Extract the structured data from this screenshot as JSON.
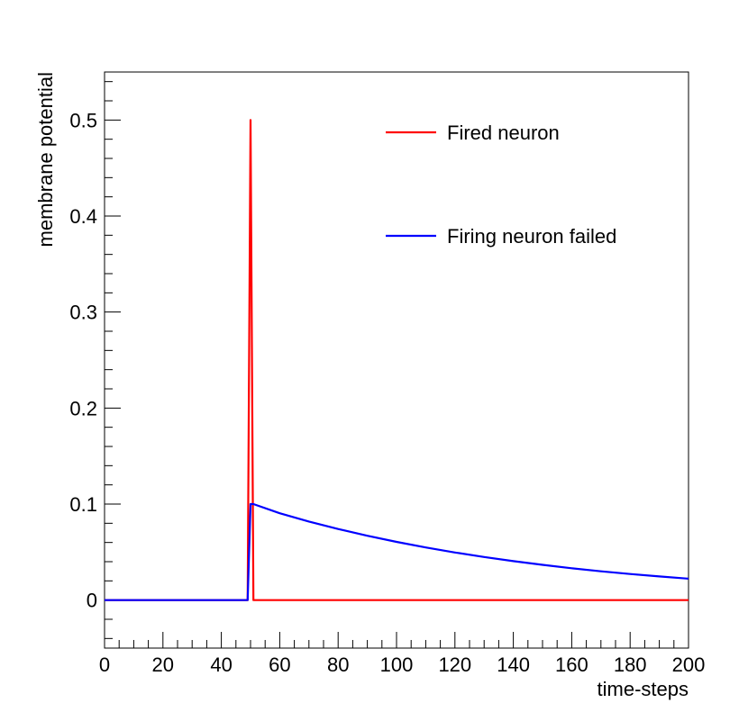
{
  "chart_data": {
    "type": "line",
    "xlabel": "time-steps",
    "ylabel": "membrane potential",
    "xlim": [
      0,
      200
    ],
    "ylim": [
      -0.05,
      0.55
    ],
    "x_ticks": [
      0,
      20,
      40,
      60,
      80,
      100,
      120,
      140,
      160,
      180,
      200
    ],
    "x_tick_labels": [
      "0",
      "20",
      "40",
      "60",
      "80",
      "100",
      "120",
      "140",
      "160",
      "180",
      "200"
    ],
    "y_ticks": [
      0,
      0.1,
      0.2,
      0.3,
      0.4,
      0.5
    ],
    "y_tick_labels": [
      "0",
      "0.1",
      "0.2",
      "0.3",
      "0.4",
      "0.5"
    ],
    "grid": false,
    "legend_position": "top-right",
    "series": [
      {
        "name": "Fired neuron",
        "color": "#ff0000",
        "x": [
          0,
          49,
          50,
          51,
          200
        ],
        "y": [
          0,
          0,
          0.5,
          0,
          0
        ]
      },
      {
        "name": "Firing neuron failed",
        "color": "#0000ff",
        "x": [
          0,
          49,
          50,
          51,
          60,
          70,
          80,
          90,
          100,
          110,
          120,
          130,
          140,
          150,
          160,
          170,
          180,
          190,
          200
        ],
        "y": [
          0,
          0,
          0.1,
          0.1,
          0.0904,
          0.0818,
          0.074,
          0.067,
          0.0606,
          0.0548,
          0.0496,
          0.0449,
          0.0406,
          0.0367,
          0.0332,
          0.03,
          0.0272,
          0.0246,
          0.0223
        ]
      }
    ]
  }
}
